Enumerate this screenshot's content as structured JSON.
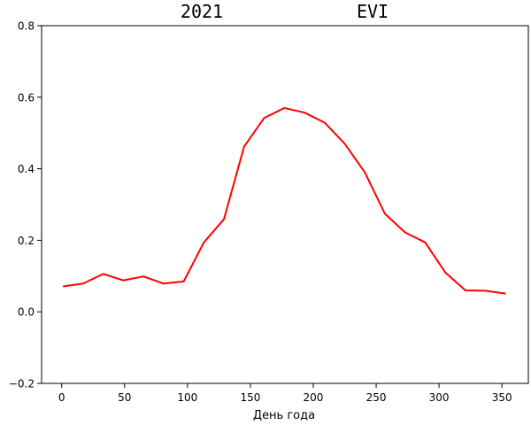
{
  "chart_data": {
    "type": "line",
    "title_left": "2021",
    "title_right": "EVI",
    "xlabel": "День года",
    "ylabel": "",
    "xlim": [
      -16,
      371
    ],
    "ylim": [
      -0.2,
      0.8
    ],
    "xticks": [
      0,
      50,
      100,
      150,
      200,
      250,
      300,
      350
    ],
    "xtick_labels": [
      "0",
      "50",
      "100",
      "150",
      "200",
      "250",
      "300",
      "350"
    ],
    "yticks": [
      -0.2,
      0.0,
      0.2,
      0.4,
      0.6,
      0.8
    ],
    "ytick_labels": [
      "−0.2",
      "0.0",
      "0.2",
      "0.4",
      "0.6",
      "0.8"
    ],
    "grid": false,
    "series": [
      {
        "color": "#ff0000",
        "x": [
          1,
          17,
          33,
          49,
          65,
          81,
          97,
          113,
          129,
          145,
          161,
          177,
          193,
          209,
          225,
          241,
          257,
          273,
          289,
          305,
          321,
          337,
          353
        ],
        "y": [
          0.071,
          0.079,
          0.106,
          0.088,
          0.099,
          0.079,
          0.085,
          0.194,
          0.259,
          0.462,
          0.542,
          0.57,
          0.557,
          0.529,
          0.47,
          0.39,
          0.274,
          0.222,
          0.194,
          0.11,
          0.06,
          0.059,
          0.051
        ]
      }
    ]
  }
}
